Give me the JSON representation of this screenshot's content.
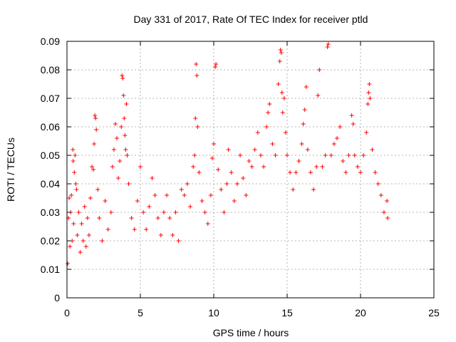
{
  "chart_data": {
    "type": "scatter",
    "title": "Day 331 of 2017, Rate Of TEC Index for receiver ptld",
    "xlabel": "GPS time / hours",
    "ylabel": "ROTI / TECUs",
    "xlim": [
      0,
      25
    ],
    "ylim": [
      0,
      0.09
    ],
    "xticks": [
      "0",
      "5",
      "10",
      "15",
      "20",
      "25"
    ],
    "yticks": [
      "0",
      "0.01",
      "0.02",
      "0.03",
      "0.04",
      "0.05",
      "0.06",
      "0.07",
      "0.08",
      "0.09"
    ],
    "grid": true,
    "marker": "+",
    "color": "#ff0000",
    "series": [
      {
        "points": [
          [
            0.05,
            0.012
          ],
          [
            0.1,
            0.028
          ],
          [
            0.15,
            0.035
          ],
          [
            0.2,
            0.018
          ],
          [
            0.25,
            0.03
          ],
          [
            0.3,
            0.036
          ],
          [
            0.35,
            0.02
          ],
          [
            0.4,
            0.052
          ],
          [
            0.42,
            0.048
          ],
          [
            0.45,
            0.026
          ],
          [
            0.5,
            0.044
          ],
          [
            0.55,
            0.05
          ],
          [
            0.6,
            0.04
          ],
          [
            0.65,
            0.038
          ],
          [
            0.7,
            0.022
          ],
          [
            0.8,
            0.03
          ],
          [
            0.9,
            0.016
          ],
          [
            1.0,
            0.026
          ],
          [
            1.1,
            0.02
          ],
          [
            1.2,
            0.032
          ],
          [
            1.3,
            0.018
          ],
          [
            1.4,
            0.028
          ],
          [
            1.5,
            0.022
          ],
          [
            1.6,
            0.035
          ],
          [
            1.7,
            0.046
          ],
          [
            1.8,
            0.045
          ],
          [
            1.85,
            0.054
          ],
          [
            1.9,
            0.064
          ],
          [
            1.95,
            0.063
          ],
          [
            2.0,
            0.059
          ],
          [
            2.1,
            0.038
          ],
          [
            2.2,
            0.028
          ],
          [
            2.4,
            0.02
          ],
          [
            2.6,
            0.034
          ],
          [
            2.8,
            0.024
          ],
          [
            3.0,
            0.03
          ],
          [
            3.1,
            0.046
          ],
          [
            3.2,
            0.052
          ],
          [
            3.3,
            0.061
          ],
          [
            3.4,
            0.056
          ],
          [
            3.5,
            0.042
          ],
          [
            3.6,
            0.048
          ],
          [
            3.7,
            0.06
          ],
          [
            3.75,
            0.078
          ],
          [
            3.8,
            0.077
          ],
          [
            3.85,
            0.071
          ],
          [
            3.9,
            0.063
          ],
          [
            3.95,
            0.057
          ],
          [
            4.0,
            0.052
          ],
          [
            4.05,
            0.068
          ],
          [
            4.1,
            0.05
          ],
          [
            4.2,
            0.04
          ],
          [
            4.4,
            0.028
          ],
          [
            4.6,
            0.024
          ],
          [
            4.8,
            0.034
          ],
          [
            5.0,
            0.046
          ],
          [
            5.2,
            0.03
          ],
          [
            5.4,
            0.024
          ],
          [
            5.6,
            0.032
          ],
          [
            5.8,
            0.042
          ],
          [
            6.0,
            0.036
          ],
          [
            6.2,
            0.028
          ],
          [
            6.4,
            0.022
          ],
          [
            6.6,
            0.03
          ],
          [
            6.8,
            0.036
          ],
          [
            7.0,
            0.028
          ],
          [
            7.2,
            0.022
          ],
          [
            7.4,
            0.03
          ],
          [
            7.6,
            0.02
          ],
          [
            7.8,
            0.038
          ],
          [
            8.0,
            0.036
          ],
          [
            8.2,
            0.04
          ],
          [
            8.4,
            0.032
          ],
          [
            8.6,
            0.046
          ],
          [
            8.7,
            0.05
          ],
          [
            8.75,
            0.063
          ],
          [
            8.8,
            0.082
          ],
          [
            8.85,
            0.078
          ],
          [
            8.9,
            0.06
          ],
          [
            9.0,
            0.044
          ],
          [
            9.2,
            0.034
          ],
          [
            9.4,
            0.03
          ],
          [
            9.6,
            0.026
          ],
          [
            9.8,
            0.036
          ],
          [
            9.9,
            0.049
          ],
          [
            10.0,
            0.054
          ],
          [
            10.1,
            0.081
          ],
          [
            10.15,
            0.082
          ],
          [
            10.3,
            0.045
          ],
          [
            10.5,
            0.038
          ],
          [
            10.7,
            0.03
          ],
          [
            10.9,
            0.04
          ],
          [
            11.0,
            0.052
          ],
          [
            11.2,
            0.044
          ],
          [
            11.4,
            0.034
          ],
          [
            11.6,
            0.04
          ],
          [
            11.8,
            0.05
          ],
          [
            12.0,
            0.042
          ],
          [
            12.2,
            0.036
          ],
          [
            12.4,
            0.048
          ],
          [
            12.6,
            0.046
          ],
          [
            12.8,
            0.052
          ],
          [
            13.0,
            0.058
          ],
          [
            13.2,
            0.05
          ],
          [
            13.4,
            0.046
          ],
          [
            13.6,
            0.06
          ],
          [
            13.7,
            0.065
          ],
          [
            13.8,
            0.068
          ],
          [
            14.0,
            0.054
          ],
          [
            14.2,
            0.05
          ],
          [
            14.4,
            0.075
          ],
          [
            14.5,
            0.083
          ],
          [
            14.55,
            0.087
          ],
          [
            14.6,
            0.086
          ],
          [
            14.65,
            0.072
          ],
          [
            14.7,
            0.065
          ],
          [
            14.8,
            0.07
          ],
          [
            14.9,
            0.058
          ],
          [
            15.0,
            0.05
          ],
          [
            15.2,
            0.044
          ],
          [
            15.4,
            0.038
          ],
          [
            15.6,
            0.044
          ],
          [
            15.8,
            0.048
          ],
          [
            16.0,
            0.054
          ],
          [
            16.1,
            0.061
          ],
          [
            16.2,
            0.066
          ],
          [
            16.3,
            0.074
          ],
          [
            16.4,
            0.052
          ],
          [
            16.6,
            0.044
          ],
          [
            16.8,
            0.038
          ],
          [
            17.0,
            0.046
          ],
          [
            17.1,
            0.071
          ],
          [
            17.2,
            0.08
          ],
          [
            17.4,
            0.046
          ],
          [
            17.6,
            0.05
          ],
          [
            17.75,
            0.088
          ],
          [
            17.8,
            0.089
          ],
          [
            18.0,
            0.05
          ],
          [
            18.2,
            0.054
          ],
          [
            18.4,
            0.056
          ],
          [
            18.6,
            0.06
          ],
          [
            18.8,
            0.048
          ],
          [
            19.0,
            0.044
          ],
          [
            19.2,
            0.05
          ],
          [
            19.4,
            0.064
          ],
          [
            19.5,
            0.061
          ],
          [
            19.6,
            0.05
          ],
          [
            19.8,
            0.046
          ],
          [
            20.0,
            0.044
          ],
          [
            20.2,
            0.05
          ],
          [
            20.4,
            0.058
          ],
          [
            20.5,
            0.068
          ],
          [
            20.55,
            0.072
          ],
          [
            20.6,
            0.075
          ],
          [
            20.65,
            0.07
          ],
          [
            20.8,
            0.052
          ],
          [
            21.0,
            0.044
          ],
          [
            21.2,
            0.04
          ],
          [
            21.4,
            0.036
          ],
          [
            21.6,
            0.03
          ],
          [
            21.8,
            0.034
          ],
          [
            21.85,
            0.028
          ]
        ]
      }
    ]
  }
}
